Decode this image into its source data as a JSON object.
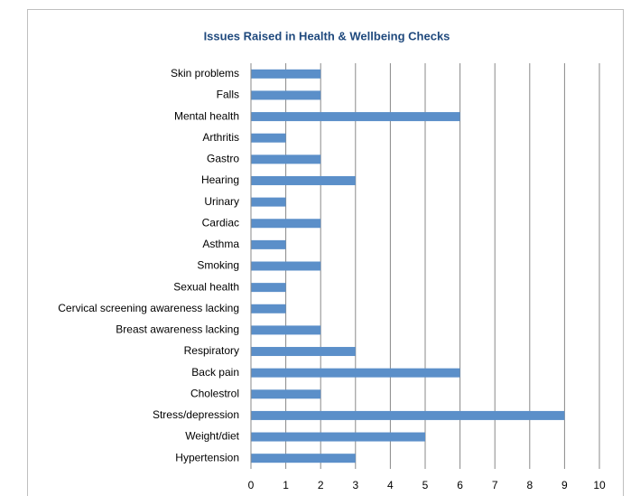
{
  "chart_data": {
    "type": "bar",
    "orientation": "horizontal",
    "title": "Issues Raised in Health & Wellbeing Checks",
    "categories": [
      "Skin problems",
      "Falls",
      "Mental health",
      "Arthritis",
      "Gastro",
      "Hearing",
      "Urinary",
      "Cardiac",
      "Asthma",
      "Smoking",
      "Sexual health",
      "Cervical screening awareness lacking",
      "Breast awareness lacking",
      "Respiratory",
      "Back pain",
      "Cholestrol",
      "Stress/depression",
      "Weight/diet",
      "Hypertension"
    ],
    "values": [
      2,
      2,
      6,
      1,
      2,
      3,
      1,
      2,
      1,
      2,
      1,
      1,
      2,
      3,
      6,
      2,
      9,
      5,
      3
    ],
    "color": "#5b8fc9",
    "xlim": [
      0,
      10
    ],
    "xticks": [
      0,
      1,
      2,
      3,
      4,
      5,
      6,
      7,
      8,
      9,
      10
    ],
    "grid": true
  }
}
